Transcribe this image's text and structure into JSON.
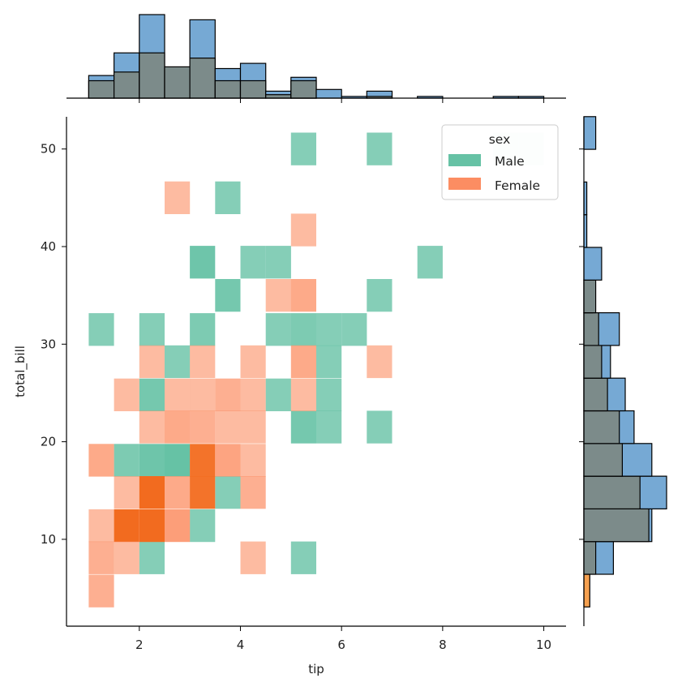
{
  "chart_data": {
    "type": "heatmap",
    "title": "",
    "xlabel": "tip",
    "ylabel": "total_bill",
    "xlim": [
      0.56,
      10.44
    ],
    "ylim": [
      1.1,
      53.3
    ],
    "x_ticks": [
      "2",
      "4",
      "6",
      "8",
      "10"
    ],
    "x_tick_values": [
      2,
      4,
      6,
      8,
      10
    ],
    "y_ticks": [
      "10",
      "20",
      "30",
      "40",
      "50"
    ],
    "y_tick_values": [
      10,
      20,
      30,
      40,
      50
    ],
    "grid": false,
    "legend": {
      "title": "sex",
      "placement": "top-right",
      "entries": [
        {
          "label": "Male",
          "color": "#66c2a5"
        },
        {
          "label": "Female",
          "color": "#fc8d62"
        }
      ]
    },
    "bin_width_x": 0.5,
    "bin_width_y": 3.35,
    "x_bin_start": 1.0,
    "y_bin_start": 3.07,
    "colors": {
      "male": "#66c2a5",
      "female": "#fc8d62",
      "female_dense": "#f26b1f",
      "marginal_male": "#76a9d4",
      "marginal_female": "#f5a04f",
      "marginal_overlap": "#7c8b8a"
    },
    "cells": [
      {
        "sex": "Male",
        "x": 1.25,
        "y": 31.5,
        "alpha": 0.8
      },
      {
        "sex": "Male",
        "x": 2.25,
        "y": 31.5,
        "alpha": 0.8
      },
      {
        "sex": "Male",
        "x": 3.25,
        "y": 31.5,
        "alpha": 0.85
      },
      {
        "sex": "Male",
        "x": 4.75,
        "y": 31.5,
        "alpha": 0.8
      },
      {
        "sex": "Male",
        "x": 5.25,
        "y": 31.5,
        "alpha": 0.85
      },
      {
        "sex": "Male",
        "x": 5.75,
        "y": 31.5,
        "alpha": 0.8
      },
      {
        "sex": "Male",
        "x": 6.25,
        "y": 31.5,
        "alpha": 0.8
      },
      {
        "sex": "Male",
        "x": 5.25,
        "y": 50.0,
        "alpha": 0.8
      },
      {
        "sex": "Male",
        "x": 6.75,
        "y": 50.0,
        "alpha": 0.8
      },
      {
        "sex": "Male",
        "x": 9.25,
        "y": 50.0,
        "alpha": 0.15
      },
      {
        "sex": "Male",
        "x": 9.75,
        "y": 50.0,
        "alpha": 0.15
      },
      {
        "sex": "Male",
        "x": 3.75,
        "y": 45.0,
        "alpha": 0.8
      },
      {
        "sex": "Male",
        "x": 3.25,
        "y": 38.4,
        "alpha": 0.95
      },
      {
        "sex": "Male",
        "x": 4.25,
        "y": 38.4,
        "alpha": 0.8
      },
      {
        "sex": "Male",
        "x": 4.75,
        "y": 38.4,
        "alpha": 0.8
      },
      {
        "sex": "Male",
        "x": 7.75,
        "y": 38.4,
        "alpha": 0.8
      },
      {
        "sex": "Male",
        "x": 3.75,
        "y": 35.0,
        "alpha": 0.9
      },
      {
        "sex": "Male",
        "x": 6.75,
        "y": 35.0,
        "alpha": 0.8
      },
      {
        "sex": "Male",
        "x": 2.75,
        "y": 28.2,
        "alpha": 0.8
      },
      {
        "sex": "Male",
        "x": 5.75,
        "y": 28.2,
        "alpha": 0.8
      },
      {
        "sex": "Male",
        "x": 2.25,
        "y": 24.8,
        "alpha": 0.9
      },
      {
        "sex": "Male",
        "x": 4.75,
        "y": 24.8,
        "alpha": 0.8
      },
      {
        "sex": "Male",
        "x": 5.75,
        "y": 24.8,
        "alpha": 0.8
      },
      {
        "sex": "Male",
        "x": 5.25,
        "y": 21.5,
        "alpha": 0.9
      },
      {
        "sex": "Male",
        "x": 5.75,
        "y": 21.5,
        "alpha": 0.8
      },
      {
        "sex": "Male",
        "x": 6.75,
        "y": 21.5,
        "alpha": 0.8
      },
      {
        "sex": "Male",
        "x": 1.75,
        "y": 18.1,
        "alpha": 0.85
      },
      {
        "sex": "Male",
        "x": 2.25,
        "y": 18.1,
        "alpha": 0.95
      },
      {
        "sex": "Male",
        "x": 2.75,
        "y": 18.1,
        "alpha": 1.0
      },
      {
        "sex": "Male",
        "x": 3.75,
        "y": 14.8,
        "alpha": 0.8
      },
      {
        "sex": "Male",
        "x": 3.25,
        "y": 11.4,
        "alpha": 0.8
      },
      {
        "sex": "Male",
        "x": 2.25,
        "y": 8.1,
        "alpha": 0.8
      },
      {
        "sex": "Male",
        "x": 5.25,
        "y": 8.1,
        "alpha": 0.8
      },
      {
        "sex": "Female",
        "x": 2.75,
        "y": 45.0,
        "alpha": 0.6
      },
      {
        "sex": "Female",
        "x": 5.25,
        "y": 41.7,
        "alpha": 0.6
      },
      {
        "sex": "Female",
        "x": 4.75,
        "y": 35.0,
        "alpha": 0.6
      },
      {
        "sex": "Female",
        "x": 5.25,
        "y": 35.0,
        "alpha": 0.75
      },
      {
        "sex": "Female",
        "x": 2.25,
        "y": 28.2,
        "alpha": 0.6
      },
      {
        "sex": "Female",
        "x": 3.25,
        "y": 28.2,
        "alpha": 0.6
      },
      {
        "sex": "Female",
        "x": 4.25,
        "y": 28.2,
        "alpha": 0.6
      },
      {
        "sex": "Female",
        "x": 5.25,
        "y": 28.2,
        "alpha": 0.75
      },
      {
        "sex": "Female",
        "x": 6.75,
        "y": 28.2,
        "alpha": 0.6
      },
      {
        "sex": "Female",
        "x": 1.75,
        "y": 24.8,
        "alpha": 0.6
      },
      {
        "sex": "Female",
        "x": 2.75,
        "y": 24.8,
        "alpha": 0.6
      },
      {
        "sex": "Female",
        "x": 3.25,
        "y": 24.8,
        "alpha": 0.6
      },
      {
        "sex": "Female",
        "x": 3.75,
        "y": 24.8,
        "alpha": 0.7
      },
      {
        "sex": "Female",
        "x": 4.25,
        "y": 24.8,
        "alpha": 0.6
      },
      {
        "sex": "Female",
        "x": 5.25,
        "y": 24.8,
        "alpha": 0.6
      },
      {
        "sex": "Female",
        "x": 2.25,
        "y": 21.5,
        "alpha": 0.6
      },
      {
        "sex": "Female",
        "x": 2.75,
        "y": 21.5,
        "alpha": 0.75
      },
      {
        "sex": "Female",
        "x": 3.25,
        "y": 21.5,
        "alpha": 0.7
      },
      {
        "sex": "Female",
        "x": 3.75,
        "y": 21.5,
        "alpha": 0.6
      },
      {
        "sex": "Female",
        "x": 4.25,
        "y": 21.5,
        "alpha": 0.6
      },
      {
        "sex": "Female",
        "x": 1.25,
        "y": 18.1,
        "alpha": 0.75
      },
      {
        "sex": "Female",
        "x": 3.25,
        "y": 18.1,
        "alpha": 0.95
      },
      {
        "sex": "Female",
        "x": 3.75,
        "y": 18.1,
        "alpha": 0.8
      },
      {
        "sex": "Female",
        "x": 4.25,
        "y": 18.1,
        "alpha": 0.6
      },
      {
        "sex": "Female",
        "x": 1.75,
        "y": 14.8,
        "alpha": 0.6
      },
      {
        "sex": "Female",
        "x": 2.25,
        "y": 14.8,
        "alpha": 1.0
      },
      {
        "sex": "Female",
        "x": 2.75,
        "y": 14.8,
        "alpha": 0.75
      },
      {
        "sex": "Female",
        "x": 3.25,
        "y": 14.8,
        "alpha": 0.95
      },
      {
        "sex": "Female",
        "x": 4.25,
        "y": 14.8,
        "alpha": 0.7
      },
      {
        "sex": "Female",
        "x": 1.25,
        "y": 11.4,
        "alpha": 0.6
      },
      {
        "sex": "Female",
        "x": 1.75,
        "y": 11.4,
        "alpha": 1.0
      },
      {
        "sex": "Female",
        "x": 2.25,
        "y": 11.4,
        "alpha": 1.0
      },
      {
        "sex": "Female",
        "x": 2.75,
        "y": 11.4,
        "alpha": 0.85
      },
      {
        "sex": "Female",
        "x": 1.25,
        "y": 8.1,
        "alpha": 0.7
      },
      {
        "sex": "Female",
        "x": 1.75,
        "y": 8.1,
        "alpha": 0.6
      },
      {
        "sex": "Female",
        "x": 4.25,
        "y": 8.1,
        "alpha": 0.6
      },
      {
        "sex": "Female",
        "x": 1.25,
        "y": 4.7,
        "alpha": 0.7
      }
    ],
    "marginal_x": {
      "bin_edges": [
        1.0,
        1.5,
        2.0,
        2.5,
        3.0,
        3.5,
        4.0,
        4.5,
        5.0,
        5.5,
        6.0,
        6.5,
        7.0,
        7.5,
        8.0,
        8.5,
        9.0,
        9.5,
        10.0
      ],
      "male": [
        13,
        26,
        48,
        17,
        45,
        17,
        20,
        4,
        12,
        5,
        1,
        4,
        0,
        1,
        0,
        0,
        1,
        1
      ],
      "female": [
        10,
        15,
        26,
        18,
        23,
        10,
        10,
        2,
        10,
        0,
        0,
        1,
        0,
        0,
        0,
        0,
        0,
        0
      ]
    },
    "marginal_y": {
      "bin_edges": [
        3.07,
        6.42,
        9.77,
        13.12,
        16.47,
        19.82,
        23.17,
        26.52,
        29.87,
        33.22,
        36.57,
        39.92,
        43.27,
        46.62,
        49.97,
        53.32
      ],
      "male": [
        0,
        10,
        23,
        28,
        23,
        17,
        14,
        9,
        12,
        3,
        6,
        1,
        1,
        0,
        4
      ],
      "female": [
        2,
        4,
        22,
        19,
        13,
        12,
        8,
        6,
        5,
        4,
        0,
        0,
        0,
        0,
        0
      ]
    }
  }
}
